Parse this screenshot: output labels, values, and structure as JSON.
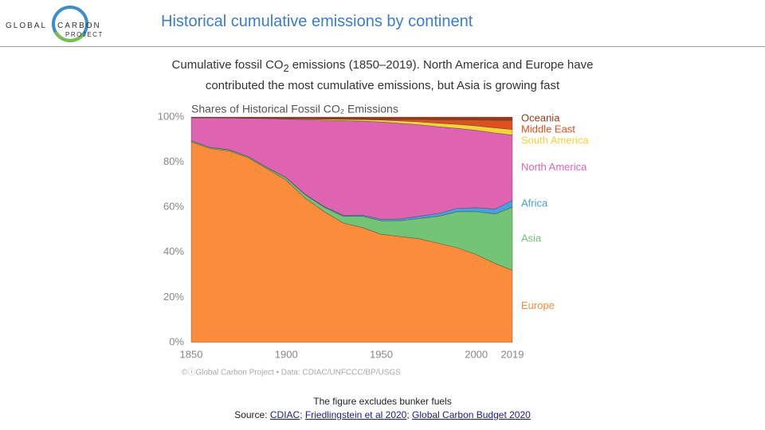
{
  "logo": {
    "left": "GLOBAL",
    "right": "CARBON",
    "bottom": "PROJECT"
  },
  "title": "Historical cumulative emissions by continent",
  "subtitle": {
    "before": "Cumulative fossil CO",
    "subscript": "2",
    "after": " emissions (1850–2019). North America and Europe have contributed the most cumulative emissions, but Asia is growing fast"
  },
  "chart_data": {
    "type": "stacked-area",
    "title": "Shares of Historical Fossil CO₂ Emissions",
    "source": "©ⓘGlobal Carbon Project  •  Data: CDIAC/UNFCCC/BP/USGS",
    "x": [
      1850,
      1860,
      1870,
      1880,
      1890,
      1900,
      1910,
      1920,
      1930,
      1940,
      1950,
      1960,
      1970,
      1980,
      1990,
      2000,
      2010,
      2019
    ],
    "series": [
      {
        "name": "Europe",
        "color": "#fa8c3c",
        "values": [
          89,
          86,
          85,
          82,
          77,
          72,
          64,
          58,
          53,
          51,
          48,
          47,
          46,
          44,
          42,
          39,
          35,
          32
        ]
      },
      {
        "name": "Asia",
        "color": "#74c476",
        "values": [
          0.5,
          0.5,
          0.5,
          0.5,
          0.5,
          1,
          1.5,
          2,
          3,
          5,
          6,
          7,
          9,
          12,
          16,
          19,
          22,
          28
        ]
      },
      {
        "name": "Africa",
        "color": "#4a9fe0",
        "values": [
          0,
          0,
          0,
          0,
          0.1,
          0.1,
          0.2,
          0.3,
          0.4,
          0.5,
          0.6,
          0.8,
          1,
          1.2,
          1.5,
          1.8,
          2.2,
          3
        ]
      },
      {
        "name": "North America",
        "color": "#de64b2",
        "values": [
          10.2,
          13.2,
          14.1,
          17,
          21.7,
          26,
          33.2,
          38.3,
          42,
          41.7,
          43.2,
          42.4,
          40.6,
          38.5,
          35.5,
          34.3,
          33.7,
          29
        ]
      },
      {
        "name": "South America",
        "color": "#f6d13a",
        "values": [
          0,
          0,
          0,
          0,
          0.1,
          0.2,
          0.3,
          0.5,
          0.6,
          0.7,
          0.9,
          1.1,
          1.3,
          1.6,
          1.8,
          2,
          2.3,
          2.5
        ]
      },
      {
        "name": "Middle East",
        "color": "#e0501e",
        "values": [
          0,
          0,
          0,
          0,
          0,
          0,
          0,
          0,
          0,
          0.1,
          0.3,
          0.6,
          1,
          1.5,
          2,
          2.6,
          3.4,
          4
        ]
      },
      {
        "name": "Oceania",
        "color": "#9b3a1a",
        "values": [
          0.3,
          0.3,
          0.4,
          0.5,
          0.6,
          0.7,
          0.8,
          0.9,
          1,
          1,
          1,
          1.1,
          1.1,
          1.2,
          1.2,
          1.3,
          1.4,
          1.5
        ]
      }
    ],
    "xlim": [
      1850,
      2019
    ],
    "xticks": [
      1850,
      1900,
      1950,
      2000,
      2019
    ],
    "ylim": [
      0,
      100
    ],
    "yticks": [
      {
        "value": 0,
        "label": "0%"
      },
      {
        "value": 20,
        "label": "20%"
      },
      {
        "value": 40,
        "label": "40%"
      },
      {
        "value": 60,
        "label": "60%"
      },
      {
        "value": 80,
        "label": "80%"
      },
      {
        "value": 100,
        "label": "100%"
      }
    ],
    "grid": false,
    "legend": "right"
  },
  "footer": {
    "note": "The figure excludes bunker fuels",
    "source_label": "Source:",
    "separator": ";",
    "links": [
      "CDIAC",
      "Friedlingstein et al 2020",
      "Global Carbon Budget 2020"
    ]
  }
}
